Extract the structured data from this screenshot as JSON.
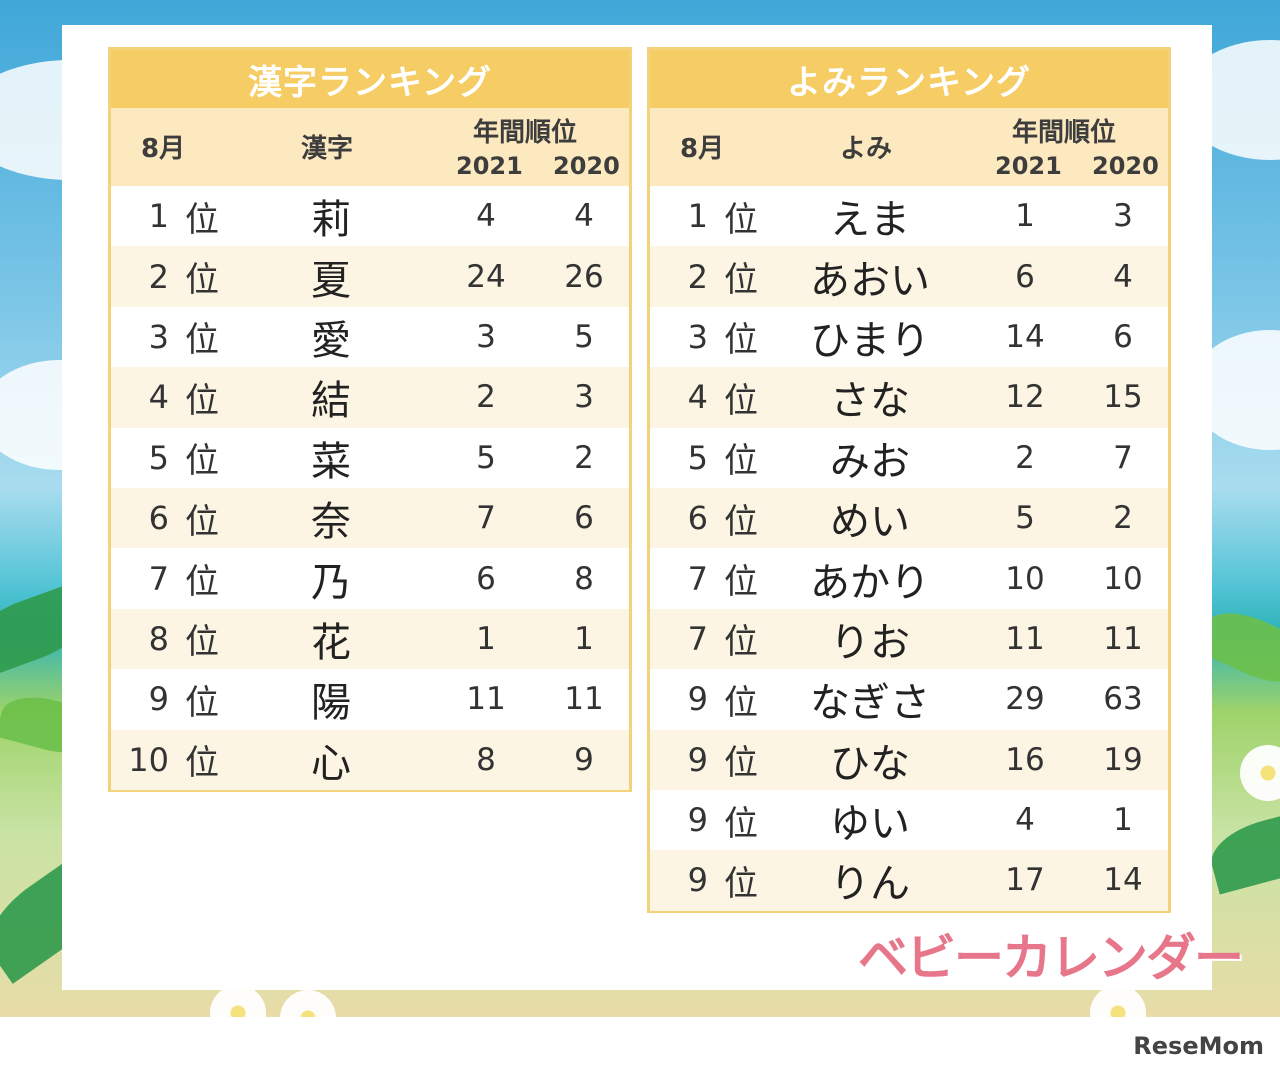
{
  "kanji_table": {
    "title": "漢字ランキング",
    "col_month": "8月",
    "col_item": "漢字",
    "col_annual": "年間順位",
    "col_year1": "2021",
    "col_year2": "2020",
    "rows": [
      {
        "rank": "1",
        "suffix": "位",
        "item": "莉",
        "y2021": "4",
        "y2020": "4"
      },
      {
        "rank": "2",
        "suffix": "位",
        "item": "夏",
        "y2021": "24",
        "y2020": "26"
      },
      {
        "rank": "3",
        "suffix": "位",
        "item": "愛",
        "y2021": "3",
        "y2020": "5"
      },
      {
        "rank": "4",
        "suffix": "位",
        "item": "結",
        "y2021": "2",
        "y2020": "3"
      },
      {
        "rank": "5",
        "suffix": "位",
        "item": "菜",
        "y2021": "5",
        "y2020": "2"
      },
      {
        "rank": "6",
        "suffix": "位",
        "item": "奈",
        "y2021": "7",
        "y2020": "6"
      },
      {
        "rank": "7",
        "suffix": "位",
        "item": "乃",
        "y2021": "6",
        "y2020": "8"
      },
      {
        "rank": "8",
        "suffix": "位",
        "item": "花",
        "y2021": "1",
        "y2020": "1"
      },
      {
        "rank": "9",
        "suffix": "位",
        "item": "陽",
        "y2021": "11",
        "y2020": "11"
      },
      {
        "rank": "10",
        "suffix": "位",
        "item": "心",
        "y2021": "8",
        "y2020": "9"
      }
    ]
  },
  "yomi_table": {
    "title": "よみランキング",
    "col_month": "8月",
    "col_item": "よみ",
    "col_annual": "年間順位",
    "col_year1": "2021",
    "col_year2": "2020",
    "rows": [
      {
        "rank": "1",
        "suffix": "位",
        "item": "えま",
        "y2021": "1",
        "y2020": "3"
      },
      {
        "rank": "2",
        "suffix": "位",
        "item": "あおい",
        "y2021": "6",
        "y2020": "4"
      },
      {
        "rank": "3",
        "suffix": "位",
        "item": "ひまり",
        "y2021": "14",
        "y2020": "6"
      },
      {
        "rank": "4",
        "suffix": "位",
        "item": "さな",
        "y2021": "12",
        "y2020": "15"
      },
      {
        "rank": "5",
        "suffix": "位",
        "item": "みお",
        "y2021": "2",
        "y2020": "7"
      },
      {
        "rank": "6",
        "suffix": "位",
        "item": "めい",
        "y2021": "5",
        "y2020": "2"
      },
      {
        "rank": "7",
        "suffix": "位",
        "item": "あかり",
        "y2021": "10",
        "y2020": "10"
      },
      {
        "rank": "7",
        "suffix": "位",
        "item": "りお",
        "y2021": "11",
        "y2020": "11"
      },
      {
        "rank": "9",
        "suffix": "位",
        "item": "なぎさ",
        "y2021": "29",
        "y2020": "63"
      },
      {
        "rank": "9",
        "suffix": "位",
        "item": "ひな",
        "y2021": "16",
        "y2020": "19"
      },
      {
        "rank": "9",
        "suffix": "位",
        "item": "ゆい",
        "y2021": "4",
        "y2020": "1"
      },
      {
        "rank": "9",
        "suffix": "位",
        "item": "りん",
        "y2021": "17",
        "y2020": "14"
      }
    ]
  },
  "logo_text": "ベビーカレンダー",
  "watermark": "ReseMom",
  "colors": {
    "header_gold": "#f6cd64",
    "subheader_cream": "#fde9c0",
    "row_alt": "#fdf5e3",
    "logo_pink": "#e8768b"
  }
}
